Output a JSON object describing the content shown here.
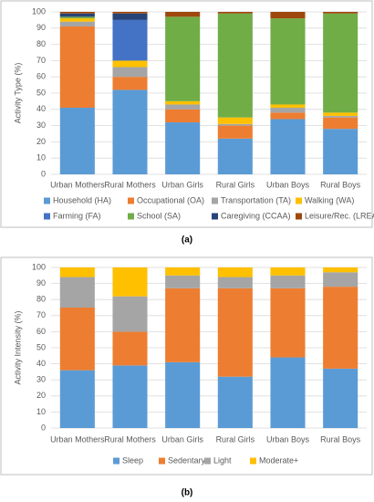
{
  "chart_data": [
    {
      "type": "bar",
      "stacked": true,
      "caption": "(a)",
      "y_label": "Activity Type (%)",
      "categories": [
        "Urban Mothers",
        "Rural Mothers",
        "Urban Girls",
        "Rural Girls",
        "Urban Boys",
        "Rural Boys"
      ],
      "series": [
        {
          "name": "Household (HA)",
          "color": "#5b9bd5",
          "values": [
            41,
            52,
            32,
            22,
            34,
            28
          ]
        },
        {
          "name": "Occupational (OA)",
          "color": "#ed7d31",
          "values": [
            50,
            8,
            8,
            8,
            4,
            7
          ]
        },
        {
          "name": "Transportation (TA)",
          "color": "#a5a5a5",
          "values": [
            3,
            6,
            3,
            1,
            3,
            1
          ]
        },
        {
          "name": "Walking (WA)",
          "color": "#ffc000",
          "values": [
            2,
            4,
            2,
            4,
            2,
            2
          ]
        },
        {
          "name": "Farming (FA)",
          "color": "#4472c4",
          "values": [
            0,
            25,
            0,
            0,
            0,
            0
          ]
        },
        {
          "name": "School (SA)",
          "color": "#70ad47",
          "values": [
            1,
            0,
            52,
            64,
            53,
            61
          ]
        },
        {
          "name": "Caregiving (CCAA)",
          "color": "#264478",
          "values": [
            2,
            4,
            0,
            0,
            0,
            0
          ]
        },
        {
          "name": "Leisure/Rec. (LREA)",
          "color": "#9e480e",
          "values": [
            1,
            1,
            3,
            1,
            4,
            1
          ]
        }
      ],
      "ylim": [
        0,
        100
      ],
      "yticks": [
        0,
        10,
        20,
        30,
        40,
        50,
        60,
        70,
        80,
        90,
        100
      ],
      "grid": true,
      "legend": "bottom"
    },
    {
      "type": "bar",
      "stacked": true,
      "caption": "(b)",
      "y_label": "Activity Intensity (%)",
      "categories": [
        "Urban Mothers",
        "Rural Mothers",
        "Urban Girls",
        "Rural Girls",
        "Urban Boys",
        "Rural Boys"
      ],
      "series": [
        {
          "name": "Sleep",
          "color": "#5b9bd5",
          "values": [
            36,
            39,
            41,
            32,
            44,
            37
          ]
        },
        {
          "name": "Sedentary",
          "color": "#ed7d31",
          "values": [
            39,
            21,
            46,
            55,
            43,
            51
          ]
        },
        {
          "name": "Light",
          "color": "#a5a5a5",
          "values": [
            19,
            22,
            8,
            7,
            8,
            9
          ]
        },
        {
          "name": "Moderate+",
          "color": "#ffc000",
          "values": [
            6,
            18,
            5,
            6,
            5,
            3
          ]
        }
      ],
      "ylim": [
        0,
        100
      ],
      "yticks": [
        0,
        10,
        20,
        30,
        40,
        50,
        60,
        70,
        80,
        90,
        100
      ],
      "grid": true,
      "legend": "bottom"
    }
  ]
}
